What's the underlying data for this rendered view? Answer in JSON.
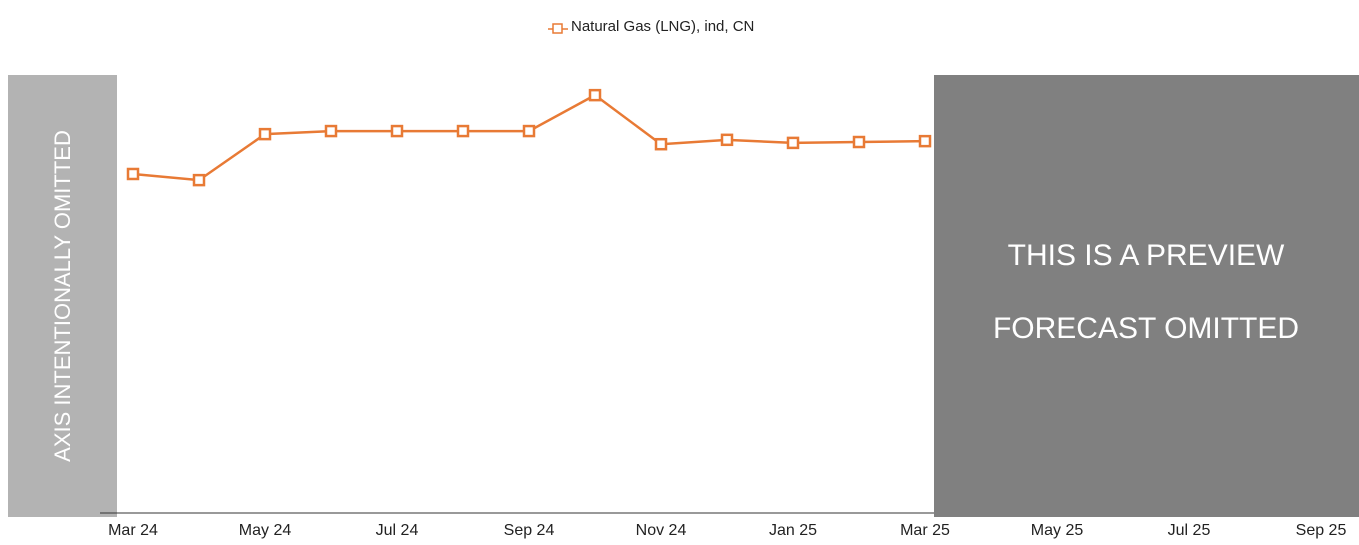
{
  "chart_data": {
    "type": "line",
    "categories": [
      "Mar 24",
      null,
      "May 24",
      null,
      "Jul 24",
      null,
      "Sep 24",
      null,
      "Nov 24",
      null,
      "Jan 25",
      null,
      "Mar 25",
      null,
      "May 25",
      null,
      "Jul 25",
      null,
      "Sep 25"
    ],
    "series": [
      {
        "name": "Natural Gas (LNG), ind, CN",
        "color": "#e87a35",
        "values": [
          77.4,
          76.0,
          86.5,
          87.2,
          87.2,
          87.2,
          87.2,
          95.4,
          84.2,
          85.2,
          84.5,
          84.7,
          84.9,
          null,
          null,
          null,
          null,
          null,
          null
        ]
      }
    ],
    "ylim": [
      0,
      100
    ],
    "legend": "top",
    "annotations": {
      "axis_note": "AXIS INTENTIONALLY OMITTED",
      "preview_line1": "THIS IS A PREVIEW",
      "preview_line2": "FORECAST OMITTED"
    }
  }
}
